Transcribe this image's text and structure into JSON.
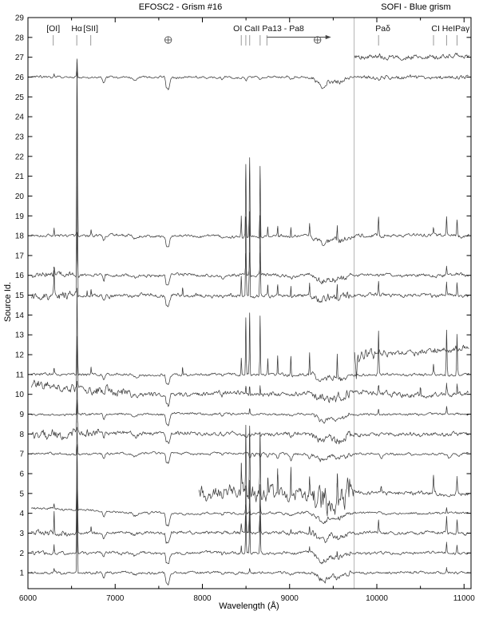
{
  "figure": {
    "title_left": "EFOSC2 - Grism #16",
    "title_right": "SOFI - Blue grism",
    "xlabel": "Wavelength (Å)",
    "ylabel": "Source Id."
  },
  "chart_data": {
    "type": "line",
    "title_left": "EFOSC2 - Grism #16",
    "title_right": "SOFI - Blue grism",
    "xlabel": "Wavelength (Å)",
    "ylabel": "Source Id.",
    "xlim": [
      6000,
      11080
    ],
    "ylim": [
      0.2,
      29.0
    ],
    "x_major_ticks": [
      6000,
      7000,
      8000,
      9000,
      10000,
      11000
    ],
    "x_minor_step": 500,
    "y_tick_min": 1,
    "y_tick_max": 29,
    "separator_x": 9740,
    "colors": {
      "spectrum": "#3d3d3d",
      "frame": "#000000",
      "separator": "#b3b3b3",
      "marker_tick": "#999999",
      "earth_symbol": "#555555"
    },
    "markers": [
      {
        "type": "line",
        "label": "[OI]",
        "tick": 6290,
        "label_at": 6290
      },
      {
        "type": "line",
        "label": "Hα",
        "tick": 6560,
        "label_at": 6560
      },
      {
        "type": "line",
        "label": "[SII]",
        "tick": 6720,
        "label_at": 6720
      },
      {
        "type": "earth",
        "at": 7608
      },
      {
        "type": "multi",
        "label": "OI CaII Pa13 - Pa8",
        "label_at": 8760,
        "ticks": [
          8446,
          8498,
          8542,
          8662
        ]
      },
      {
        "type": "arrow",
        "from": 8740,
        "to": 9430
      },
      {
        "type": "earth",
        "at": 9320
      },
      {
        "type": "line",
        "label": "Paδ",
        "tick": 10020,
        "label_at": 10070
      },
      {
        "type": "multi",
        "label": "CI HeIPaγ",
        "label_at": 10845,
        "ticks": [
          10650,
          10800,
          10920
        ]
      }
    ],
    "telluric": [
      [
        "ab",
        6870,
        0.28,
        14
      ],
      [
        "ab",
        7230,
        0.12,
        35
      ],
      [
        "ab",
        7585,
        0.3,
        9
      ],
      [
        "ab",
        7608,
        0.55,
        22
      ],
      [
        "ab",
        8230,
        0.12,
        16
      ],
      [
        "ab",
        9020,
        0.1,
        28
      ],
      [
        "ab",
        9380,
        0.35,
        80
      ],
      [
        "ab",
        9560,
        0.22,
        90
      ]
    ],
    "telluric_noise_band": [
      9250,
      9700,
      2.2
    ],
    "spectra": [
      {
        "id": 1,
        "x0": 6040,
        "x1": 11050,
        "noise": 0.055,
        "seed": 11,
        "t": 1.0,
        "nb": [],
        "f": [
          [
            "em",
            6300,
            0.2,
            5
          ],
          [
            "em",
            6563,
            3.8,
            5
          ],
          [
            "em",
            8542,
            0.25,
            5
          ],
          [
            "em",
            10800,
            0.25,
            6
          ]
        ]
      },
      {
        "id": 2,
        "x0": 6040,
        "x1": 11050,
        "noise": 0.06,
        "seed": 22,
        "t": 1.0,
        "nb": [
          [
            6000,
            6400,
            1.6
          ]
        ],
        "f": [
          [
            "em",
            6300,
            0.4,
            5
          ],
          [
            "em",
            6563,
            4.0,
            5
          ],
          [
            "em",
            8446,
            0.4,
            5
          ],
          [
            "em",
            8498,
            1.9,
            5
          ],
          [
            "em",
            8542,
            2.1,
            5
          ],
          [
            "em",
            8662,
            1.9,
            5
          ],
          [
            "em",
            9229,
            0.3,
            5
          ],
          [
            "em",
            9546,
            0.3,
            5
          ],
          [
            "em",
            10800,
            0.5,
            6
          ],
          [
            "em",
            10920,
            0.4,
            6
          ]
        ]
      },
      {
        "id": 3,
        "x0": 6040,
        "x1": 11050,
        "noise": 0.07,
        "seed": 33,
        "t": 1.0,
        "nb": [
          [
            6000,
            6450,
            2.0
          ]
        ],
        "f": [
          [
            "em",
            6300,
            1.0,
            5
          ],
          [
            "em",
            6563,
            4.5,
            5
          ],
          [
            "em",
            6724,
            0.3,
            5
          ],
          [
            "em",
            8446,
            0.5,
            5
          ],
          [
            "em",
            8498,
            2.4,
            5
          ],
          [
            "em",
            8542,
            2.6,
            5
          ],
          [
            "em",
            8662,
            2.4,
            5
          ],
          [
            "em",
            9015,
            0.3,
            5
          ],
          [
            "em",
            9229,
            0.35,
            5
          ],
          [
            "em",
            10020,
            0.6,
            6
          ],
          [
            "em",
            10800,
            0.8,
            6
          ],
          [
            "em",
            10920,
            0.7,
            6
          ]
        ]
      },
      {
        "id": 4,
        "x0": 6040,
        "x1": 11050,
        "noise": 0.05,
        "seed": 44,
        "t": 1.15,
        "nb": [],
        "f": [
          [
            "dec",
            7300,
            0.28
          ],
          [
            "em",
            6300,
            0.3,
            5
          ],
          [
            "em",
            6563,
            3.2,
            5
          ],
          [
            "em",
            8498,
            0.45,
            5
          ],
          [
            "em",
            8542,
            0.5,
            5
          ],
          [
            "em",
            8662,
            0.45,
            5
          ],
          [
            "em",
            10800,
            0.3,
            6
          ]
        ]
      },
      {
        "id": 5,
        "x0": 7960,
        "x1": 11060,
        "noise": 0.3,
        "seed": 55,
        "t": 0.8,
        "nb": [
          [
            9740,
            11060,
            0.3
          ]
        ],
        "f": [
          [
            "em",
            8446,
            1.2,
            5
          ],
          [
            "em",
            8498,
            3.3,
            5
          ],
          [
            "em",
            8542,
            3.6,
            5
          ],
          [
            "em",
            8662,
            3.3,
            5
          ],
          [
            "em",
            8750,
            1.0,
            5
          ],
          [
            "em",
            8863,
            1.1,
            5
          ],
          [
            "em",
            9015,
            1.1,
            5
          ],
          [
            "em",
            9229,
            1.2,
            5
          ],
          [
            "em",
            9546,
            1.0,
            5
          ],
          [
            "em",
            10050,
            0.4,
            6
          ],
          [
            "em",
            10650,
            1.0,
            6
          ],
          [
            "em",
            10920,
            0.8,
            6
          ]
        ]
      },
      {
        "id": 7,
        "x0": 6040,
        "x1": 11050,
        "noise": 0.05,
        "seed": 77,
        "t": 1.0,
        "nb": [],
        "f": [
          [
            "em",
            6563,
            1.4,
            5
          ],
          [
            "ab",
            8545,
            0.22,
            14
          ],
          [
            "ab",
            8600,
            0.15,
            10
          ],
          [
            "ab",
            8665,
            0.25,
            14
          ],
          [
            "ab",
            8750,
            0.22,
            13
          ],
          [
            "ab",
            8863,
            0.25,
            13
          ],
          [
            "ab",
            9015,
            0.25,
            15
          ],
          [
            "ab",
            9229,
            0.25,
            15
          ],
          [
            "ab",
            10050,
            0.25,
            20
          ],
          [
            "ab",
            10830,
            0.2,
            22
          ],
          [
            "ab",
            10940,
            0.15,
            14
          ]
        ]
      },
      {
        "id": 8,
        "x0": 6040,
        "x1": 11050,
        "noise": 0.09,
        "seed": 88,
        "t": 1.0,
        "nb": [
          [
            6000,
            6800,
            2.2
          ]
        ],
        "f": [
          [
            "em",
            6563,
            1.6,
            5
          ]
        ]
      },
      {
        "id": 9,
        "x0": 6040,
        "x1": 11050,
        "noise": 0.05,
        "seed": 99,
        "t": 1.0,
        "nb": [],
        "f": [
          [
            "em",
            6563,
            1.6,
            5
          ],
          [
            "em",
            8542,
            0.3,
            5
          ],
          [
            "em",
            10020,
            0.2,
            6
          ],
          [
            "em",
            10800,
            0.35,
            6
          ]
        ]
      },
      {
        "id": 10,
        "x0": 6040,
        "x1": 11050,
        "noise": 0.1,
        "seed": 110,
        "t": 1.1,
        "nb": [
          [
            6000,
            7200,
            1.8
          ],
          [
            9740,
            11050,
            1.2
          ]
        ],
        "f": [
          [
            "dec",
            7400,
            0.5
          ],
          [
            "em",
            6563,
            2.6,
            5
          ],
          [
            "em",
            8498,
            0.35,
            5
          ],
          [
            "em",
            8542,
            0.4,
            5
          ],
          [
            "em",
            8662,
            0.4,
            5
          ],
          [
            "em",
            10020,
            0.4,
            6
          ],
          [
            "em",
            10500,
            0.3,
            6
          ],
          [
            "em",
            10800,
            0.5,
            6
          ],
          [
            "em",
            10920,
            0.45,
            6
          ]
        ]
      },
      {
        "id": 11,
        "x0": 6040,
        "x1": 11060,
        "noise": 0.06,
        "seed": 121,
        "t": 1.0,
        "nb": [],
        "f": [
          [
            "em",
            6300,
            0.3,
            5
          ],
          [
            "em",
            6563,
            4.3,
            5
          ],
          [
            "em",
            6724,
            0.3,
            5
          ],
          [
            "em",
            7773,
            0.4,
            5
          ],
          [
            "em",
            8446,
            0.9,
            5
          ],
          [
            "em",
            8498,
            2.9,
            5
          ],
          [
            "em",
            8542,
            3.1,
            5
          ],
          [
            "em",
            8662,
            2.9,
            5
          ],
          [
            "em",
            8750,
            0.8,
            5
          ],
          [
            "em",
            8863,
            0.9,
            5
          ],
          [
            "em",
            9015,
            1.0,
            5
          ],
          [
            "em",
            9229,
            1.1,
            5
          ],
          [
            "em",
            9546,
            1.2,
            5
          ],
          [
            "em",
            10020,
            2.2,
            6
          ],
          [
            "em",
            10650,
            0.5,
            6
          ],
          [
            "em",
            10800,
            2.3,
            6
          ],
          [
            "em",
            10920,
            2.1,
            6
          ]
        ]
      },
      {
        "id": 12,
        "x0": 9745,
        "x1": 11060,
        "noise": 0.13,
        "seed": 132,
        "t": 0,
        "nb": [
          [
            9745,
            10050,
            2.0
          ]
        ],
        "f": [
          [
            "tilt",
            -0.05,
            0.3
          ],
          [
            "ab",
            9765,
            1.1,
            10
          ],
          [
            "ab",
            9800,
            0.5,
            16
          ]
        ]
      },
      {
        "id": 15,
        "x0": 6040,
        "x1": 11050,
        "noise": 0.08,
        "seed": 155,
        "t": 0.9,
        "nb": [
          [
            6000,
            6550,
            2.2
          ]
        ],
        "f": [
          [
            "em",
            6300,
            1.2,
            5
          ],
          [
            "em",
            6563,
            11.8,
            5
          ],
          [
            "em",
            6678,
            0.3,
            5
          ],
          [
            "em",
            6724,
            0.4,
            5
          ],
          [
            "em",
            7773,
            0.3,
            5
          ],
          [
            "em",
            8446,
            1.0,
            5
          ],
          [
            "em",
            8498,
            4.0,
            5
          ],
          [
            "em",
            8542,
            4.3,
            5
          ],
          [
            "em",
            8662,
            4.0,
            5
          ],
          [
            "em",
            8750,
            0.5,
            5
          ],
          [
            "em",
            8863,
            0.55,
            5
          ],
          [
            "em",
            9015,
            0.6,
            5
          ],
          [
            "em",
            9229,
            0.6,
            5
          ],
          [
            "em",
            9546,
            0.7,
            5
          ],
          [
            "em",
            10020,
            0.7,
            6
          ],
          [
            "em",
            10800,
            0.6,
            6
          ],
          [
            "em",
            10920,
            0.6,
            6
          ]
        ]
      },
      {
        "id": 16,
        "x0": 6040,
        "x1": 11050,
        "noise": 0.07,
        "seed": 166,
        "t": 1.0,
        "nb": [
          [
            6000,
            6600,
            1.8
          ]
        ],
        "f": [
          [
            "em",
            6300,
            0.35,
            5
          ],
          [
            "em",
            6563,
            2.2,
            5
          ],
          [
            "em",
            8498,
            1.1,
            5
          ],
          [
            "em",
            8542,
            1.2,
            5
          ],
          [
            "em",
            8662,
            1.1,
            5
          ],
          [
            "em",
            10800,
            0.45,
            6
          ]
        ]
      },
      {
        "id": 18,
        "x0": 6040,
        "x1": 11060,
        "noise": 0.06,
        "seed": 188,
        "t": 1.0,
        "nb": [
          [
            9740,
            11060,
            1.3
          ]
        ],
        "f": [
          [
            "em",
            6300,
            0.4,
            5
          ],
          [
            "em",
            6563,
            8.9,
            5
          ],
          [
            "em",
            6724,
            0.25,
            5
          ],
          [
            "em",
            8446,
            1.0,
            5
          ],
          [
            "em",
            8498,
            3.6,
            5
          ],
          [
            "em",
            8542,
            4.0,
            5
          ],
          [
            "em",
            8662,
            3.6,
            5
          ],
          [
            "em",
            8750,
            0.45,
            5
          ],
          [
            "em",
            8863,
            0.5,
            5
          ],
          [
            "em",
            9015,
            0.5,
            5
          ],
          [
            "em",
            9229,
            0.6,
            5
          ],
          [
            "em",
            9546,
            0.7,
            5
          ],
          [
            "em",
            10020,
            1.0,
            6
          ],
          [
            "em",
            10650,
            0.3,
            6
          ],
          [
            "em",
            10800,
            0.9,
            6
          ],
          [
            "em",
            10920,
            0.9,
            6
          ]
        ]
      },
      {
        "id": 26,
        "x0": 6040,
        "x1": 11050,
        "noise": 0.05,
        "seed": 266,
        "t": 1.1,
        "nb": [
          [
            9740,
            11050,
            1.7
          ]
        ],
        "f": [
          [
            "em",
            6300,
            0.2,
            5
          ],
          [
            "em",
            6563,
            0.85,
            5
          ],
          [
            "ab",
            8500,
            0.12,
            20
          ],
          [
            "ab",
            8660,
            0.1,
            15
          ]
        ]
      },
      {
        "id": 27,
        "x0": 9745,
        "x1": 11060,
        "noise": 0.11,
        "seed": 277,
        "t": 0,
        "nb": [],
        "f": []
      }
    ]
  }
}
